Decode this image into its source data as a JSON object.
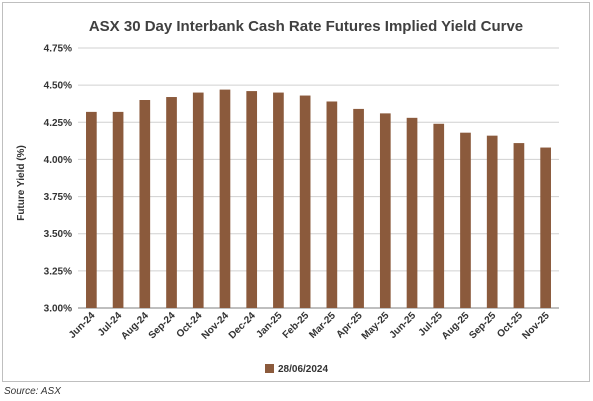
{
  "chart_data": {
    "type": "bar",
    "title": "ASX 30 Day Interbank Cash Rate Futures Implied Yield Curve",
    "xlabel": "",
    "ylabel": "Future Yield (%)",
    "categories": [
      "Jun-24",
      "Jul-24",
      "Aug-24",
      "Sep-24",
      "Oct-24",
      "Nov-24",
      "Dec-24",
      "Jan-25",
      "Feb-25",
      "Mar-25",
      "Apr-25",
      "May-25",
      "Jun-25",
      "Jul-25",
      "Aug-25",
      "Sep-25",
      "Oct-25",
      "Nov-25"
    ],
    "series": [
      {
        "name": "28/06/2024",
        "values": [
          4.32,
          4.32,
          4.4,
          4.42,
          4.45,
          4.47,
          4.46,
          4.45,
          4.43,
          4.39,
          4.34,
          4.31,
          4.28,
          4.24,
          4.18,
          4.16,
          4.11,
          4.08
        ],
        "color": "#8b5a3c"
      }
    ],
    "ylim": [
      3.0,
      4.75
    ],
    "yticks": [
      "3.00%",
      "3.25%",
      "3.50%",
      "3.75%",
      "4.00%",
      "4.25%",
      "4.50%",
      "4.75%"
    ],
    "ytick_values": [
      3.0,
      3.25,
      3.5,
      3.75,
      4.0,
      4.25,
      4.5,
      4.75
    ],
    "grid": true,
    "legend_position": "bottom"
  },
  "source": "Source: ASX"
}
